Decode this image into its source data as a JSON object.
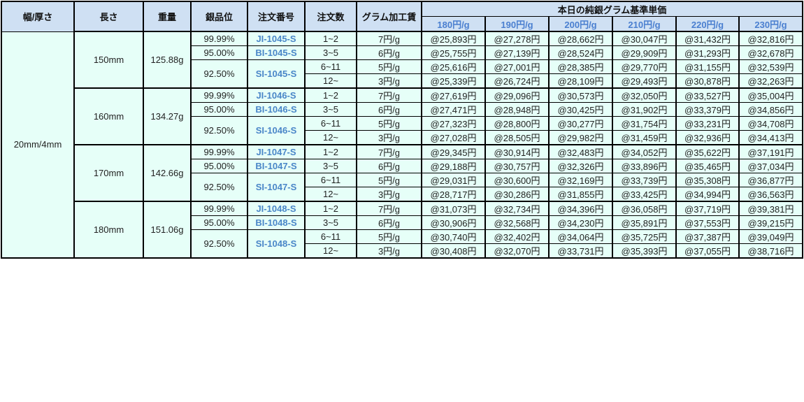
{
  "header": {
    "width_thickness": "幅/厚さ",
    "length": "長さ",
    "weight": "重量",
    "purity": "銀品位",
    "order_number": "注文番号",
    "order_qty": "注文数",
    "gram_fee": "グラム加工賃",
    "base_price_title": "本日の純銀グラム基準単価",
    "price_columns": [
      "180円/g",
      "190円/g",
      "200円/g",
      "210円/g",
      "220円/g",
      "230円/g"
    ]
  },
  "width_thickness_value": "20mm/4mm",
  "quantity_tiers": [
    {
      "qty": "1~2",
      "fee": "7円/g"
    },
    {
      "qty": "3~5",
      "fee": "6円/g"
    },
    {
      "qty": "6~11",
      "fee": "5円/g"
    },
    {
      "qty": "12~",
      "fee": "3円/g"
    }
  ],
  "groups": [
    {
      "length": "150mm",
      "weight": "125.88g",
      "purities": [
        {
          "purity": "99.99%",
          "code": "JI-1045-S"
        },
        {
          "purity": "95.00%",
          "code": "BI-1045-S"
        },
        {
          "purity": "92.50%",
          "code": "SI-1045-S"
        }
      ],
      "prices": [
        [
          "@25,893円",
          "@27,278円",
          "@28,662円",
          "@30,047円",
          "@31,432円",
          "@32,816円"
        ],
        [
          "@25,755円",
          "@27,139円",
          "@28,524円",
          "@29,909円",
          "@31,293円",
          "@32,678円"
        ],
        [
          "@25,616円",
          "@27,001円",
          "@28,385円",
          "@29,770円",
          "@31,155円",
          "@32,539円"
        ],
        [
          "@25,339円",
          "@26,724円",
          "@28,109円",
          "@29,493円",
          "@30,878円",
          "@32,263円"
        ]
      ]
    },
    {
      "length": "160mm",
      "weight": "134.27g",
      "purities": [
        {
          "purity": "99.99%",
          "code": "JI-1046-S"
        },
        {
          "purity": "95.00%",
          "code": "BI-1046-S"
        },
        {
          "purity": "92.50%",
          "code": "SI-1046-S"
        }
      ],
      "prices": [
        [
          "@27,619円",
          "@29,096円",
          "@30,573円",
          "@32,050円",
          "@33,527円",
          "@35,004円"
        ],
        [
          "@27,471円",
          "@28,948円",
          "@30,425円",
          "@31,902円",
          "@33,379円",
          "@34,856円"
        ],
        [
          "@27,323円",
          "@28,800円",
          "@30,277円",
          "@31,754円",
          "@33,231円",
          "@34,708円"
        ],
        [
          "@27,028円",
          "@28,505円",
          "@29,982円",
          "@31,459円",
          "@32,936円",
          "@34,413円"
        ]
      ]
    },
    {
      "length": "170mm",
      "weight": "142.66g",
      "purities": [
        {
          "purity": "99.99%",
          "code": "JI-1047-S"
        },
        {
          "purity": "95.00%",
          "code": "BI-1047-S"
        },
        {
          "purity": "92.50%",
          "code": "SI-1047-S"
        }
      ],
      "prices": [
        [
          "@29,345円",
          "@30,914円",
          "@32,483円",
          "@34,052円",
          "@35,622円",
          "@37,191円"
        ],
        [
          "@29,188円",
          "@30,757円",
          "@32,326円",
          "@33,896円",
          "@35,465円",
          "@37,034円"
        ],
        [
          "@29,031円",
          "@30,600円",
          "@32,169円",
          "@33,739円",
          "@35,308円",
          "@36,877円"
        ],
        [
          "@28,717円",
          "@30,286円",
          "@31,855円",
          "@33,425円",
          "@34,994円",
          "@36,563円"
        ]
      ]
    },
    {
      "length": "180mm",
      "weight": "151.06g",
      "purities": [
        {
          "purity": "99.99%",
          "code": "JI-1048-S"
        },
        {
          "purity": "95.00%",
          "code": "BI-1048-S"
        },
        {
          "purity": "92.50%",
          "code": "SI-1048-S"
        }
      ],
      "prices": [
        [
          "@31,073円",
          "@32,734円",
          "@34,396円",
          "@36,058円",
          "@37,719円",
          "@39,381円"
        ],
        [
          "@30,906円",
          "@32,568円",
          "@34,230円",
          "@35,891円",
          "@37,553円",
          "@39,215円"
        ],
        [
          "@30,740円",
          "@32,402円",
          "@34,064円",
          "@35,725円",
          "@37,387円",
          "@39,049円"
        ],
        [
          "@30,408円",
          "@32,070円",
          "@33,731円",
          "@35,393円",
          "@37,055円",
          "@38,716円"
        ]
      ]
    }
  ],
  "colors": {
    "header_bg": "#cfe0f3",
    "cell_bg": "#e6fff8",
    "code_link": "#4a86c8",
    "price_header": "#4a7fd0"
  }
}
